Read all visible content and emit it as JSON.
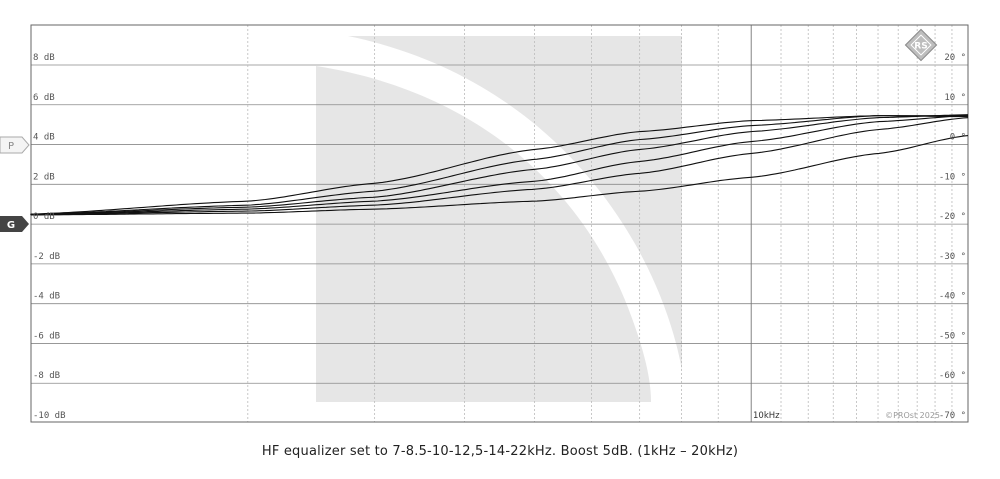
{
  "caption": "HF equalizer set to 7-8.5-10-12,5-14-22kHz. Boost 5dB. (1kHz – 20kHz)",
  "markers": {
    "p": "P",
    "g": "G"
  },
  "freq_label": "10kHz",
  "copyright": "©PROst 2025",
  "logo_text": "RS",
  "colors": {
    "grid": "#8a8a8a",
    "curve": "#111111",
    "watermark": "#e6e6e6",
    "background": "#ffffff"
  },
  "chart_data": {
    "type": "line",
    "xlabel": "",
    "ylabel": "",
    "x_scale": "log",
    "xlim": [
      1000,
      20000
    ],
    "ylim": [
      -10,
      10
    ],
    "grid": true,
    "left_ticks": [
      "8 dB",
      "6 dB",
      "4 dB",
      "2 dB",
      "0 dB",
      "-2 dB",
      "-4 dB",
      "-6 dB",
      "-8 dB",
      "-10 dB"
    ],
    "left_tick_values": [
      8,
      6,
      4,
      2,
      0,
      -2,
      -4,
      -6,
      -8,
      -10
    ],
    "right_ticks": [
      "20 °",
      "10 °",
      "0 °",
      "-10 °",
      "-20 °",
      "-30 °",
      "-40 °",
      "-50 °",
      "-60 °",
      "-70 °"
    ],
    "x_tick_labels": [
      "10kHz"
    ],
    "series": [
      {
        "corner_khz": 7,
        "x": [
          1000,
          2000,
          3000,
          5000,
          7000,
          10000,
          15000,
          20000
        ],
        "y": [
          0.05,
          0.7,
          1.6,
          3.3,
          4.2,
          4.75,
          5.0,
          4.95
        ]
      },
      {
        "corner_khz": 8.5,
        "x": [
          1000,
          2000,
          3000,
          5000,
          7000,
          10000,
          15000,
          20000
        ],
        "y": [
          0.04,
          0.5,
          1.2,
          2.8,
          3.8,
          4.5,
          5.0,
          5.0
        ]
      },
      {
        "corner_khz": 10,
        "x": [
          1000,
          2000,
          3000,
          5000,
          7000,
          10000,
          15000,
          20000
        ],
        "y": [
          0.03,
          0.4,
          0.9,
          2.3,
          3.3,
          4.2,
          4.9,
          5.05
        ]
      },
      {
        "corner_khz": 12.5,
        "x": [
          1000,
          2000,
          3000,
          5000,
          7000,
          10000,
          15000,
          20000
        ],
        "y": [
          0.02,
          0.3,
          0.7,
          1.7,
          2.7,
          3.7,
          4.7,
          5.0
        ]
      },
      {
        "corner_khz": 14,
        "x": [
          1000,
          2000,
          3000,
          5000,
          7000,
          10000,
          15000,
          20000
        ],
        "y": [
          0.02,
          0.2,
          0.5,
          1.3,
          2.1,
          3.1,
          4.3,
          4.9
        ]
      },
      {
        "corner_khz": 22,
        "x": [
          1000,
          2000,
          3000,
          5000,
          7000,
          10000,
          15000,
          20000
        ],
        "y": [
          0.01,
          0.1,
          0.3,
          0.7,
          1.2,
          1.9,
          3.1,
          4.0
        ]
      }
    ]
  }
}
